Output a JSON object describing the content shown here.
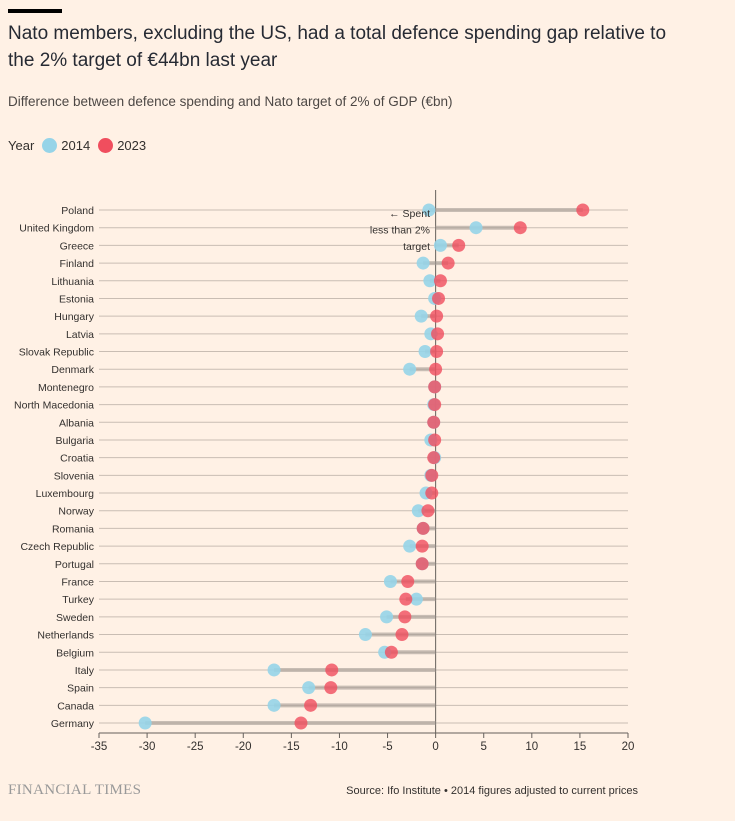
{
  "header": {
    "title": "Nato members, excluding the US, had a total defence spending gap relative to the 2% target of €44bn last year",
    "subtitle": "Difference between defence spending and Nato target of 2% of GDP (€bn)"
  },
  "legend": {
    "label": "Year",
    "items": [
      {
        "name": "2014",
        "color": "#96d4e8"
      },
      {
        "name": "2023",
        "color": "#f04e5e"
      }
    ]
  },
  "chart_data": {
    "type": "dumbbell",
    "xlim": [
      -35,
      20
    ],
    "xticks": [
      -35,
      -30,
      -25,
      -20,
      -15,
      -10,
      -5,
      0,
      5,
      10,
      15,
      20
    ],
    "grid": true,
    "legend_position": "top-left",
    "annotation": [
      "← Spent",
      "less than 2%",
      "target"
    ],
    "categories": [
      "Poland",
      "United Kingdom",
      "Greece",
      "Finland",
      "Lithuania",
      "Estonia",
      "Hungary",
      "Latvia",
      "Slovak Republic",
      "Denmark",
      "Montenegro",
      "North Macedonia",
      "Albania",
      "Bulgaria",
      "Croatia",
      "Slovenia",
      "Luxembourg",
      "Norway",
      "Romania",
      "Czech Republic",
      "Portugal",
      "France",
      "Turkey",
      "Sweden",
      "Netherlands",
      "Belgium",
      "Italy",
      "Spain",
      "Canada",
      "Germany"
    ],
    "series": [
      {
        "name": "2014",
        "color": "#96d4e8",
        "values": [
          -0.7,
          4.2,
          0.5,
          -1.3,
          -0.6,
          -0.1,
          -1.5,
          -0.5,
          -1.1,
          -2.7,
          -0.1,
          -0.2,
          -0.2,
          -0.5,
          -0.1,
          -0.5,
          -1.0,
          -1.8,
          -1.3,
          -2.7,
          -1.4,
          -4.7,
          -2.0,
          -5.1,
          -7.3,
          -5.3,
          -16.8,
          -13.2,
          -16.8,
          -30.2
        ]
      },
      {
        "name": "2023",
        "color": "#f04e5e",
        "values": [
          15.3,
          8.8,
          2.4,
          1.3,
          0.5,
          0.3,
          0.1,
          0.2,
          0.1,
          0.0,
          -0.1,
          -0.1,
          -0.2,
          -0.1,
          -0.2,
          -0.4,
          -0.4,
          -0.8,
          -1.3,
          -1.4,
          -1.4,
          -2.9,
          -3.1,
          -3.2,
          -3.5,
          -4.6,
          -10.8,
          -10.9,
          -13.0,
          -14.0
        ]
      }
    ]
  },
  "footer": {
    "logo": "FINANCIAL TIMES",
    "source": "Source: Ifo Institute • 2014 figures adjusted to current prices"
  }
}
